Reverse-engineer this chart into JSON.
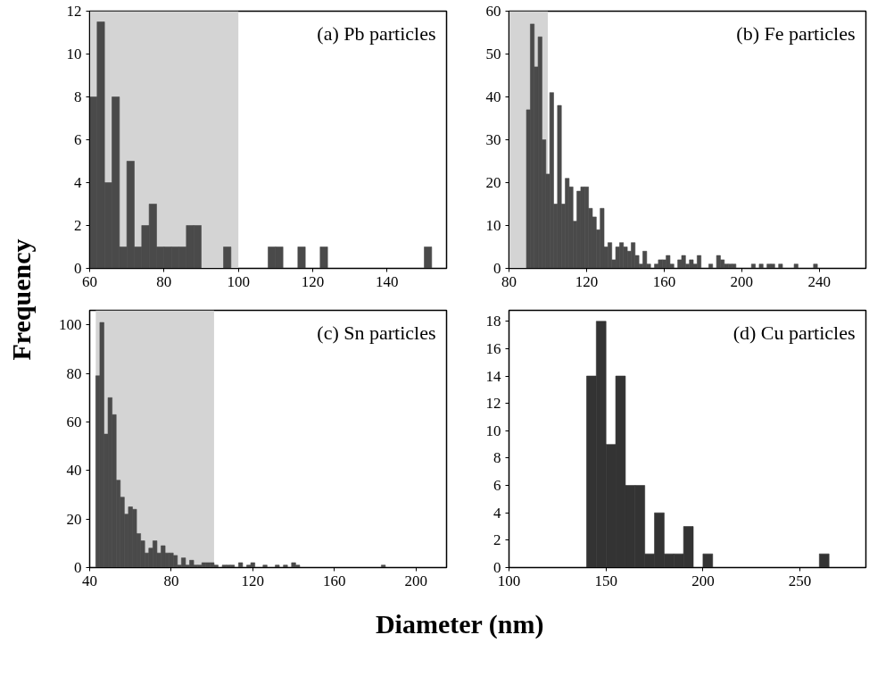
{
  "chart_data": [
    {
      "type": "histogram",
      "ylabel": "Frequency",
      "annotations": [
        "(a) Pb particles"
      ],
      "color": "#4a4a4a",
      "bins": [
        60,
        62,
        64,
        66,
        68,
        70,
        72,
        74,
        76,
        78,
        80,
        82,
        84,
        86,
        88,
        90,
        92,
        94,
        96,
        98,
        100,
        102,
        104,
        106,
        108,
        110,
        112,
        114,
        116,
        118,
        120,
        122,
        124,
        126,
        128,
        130,
        132,
        134,
        136,
        138,
        140,
        142,
        144,
        146,
        148,
        150,
        152
      ],
      "values": [
        8,
        11.5,
        4,
        8,
        1,
        5,
        1,
        2,
        3,
        1,
        1,
        1,
        1,
        2,
        2,
        0,
        0,
        0,
        1,
        0,
        0,
        0,
        0,
        0,
        1,
        1,
        0,
        0,
        1,
        0,
        0,
        1,
        0,
        0,
        0,
        0,
        0,
        0,
        0,
        0,
        0,
        0,
        0,
        0,
        0,
        1
      ],
      "xlim": [
        60,
        156
      ],
      "xticks": [
        60,
        80,
        100,
        120,
        140
      ],
      "ylim": [
        0,
        12
      ],
      "yticks": [
        0,
        2,
        4,
        6,
        8,
        10,
        12
      ],
      "bands": [
        {
          "axis": "x",
          "from": 60,
          "to": 100,
          "color": "#d4d4d4"
        }
      ],
      "grid": false
    },
    {
      "type": "histogram",
      "annotations": [
        "(b) Fe particles"
      ],
      "color": "#4a4a4a",
      "bins": [
        89,
        91,
        93,
        95,
        97,
        99,
        101,
        103,
        105,
        107,
        109,
        111,
        113,
        115,
        117,
        119,
        121,
        123,
        125,
        127,
        129,
        131,
        133,
        135,
        137,
        139,
        141,
        143,
        145,
        147,
        149,
        151,
        153,
        155,
        157,
        159,
        161,
        163,
        165,
        167,
        169,
        171,
        173,
        175,
        177,
        179,
        181,
        183,
        185,
        187,
        189,
        191,
        193,
        195,
        197,
        199,
        201,
        203,
        205,
        207,
        209,
        211,
        213,
        215,
        217,
        219,
        221,
        223,
        225,
        227,
        229,
        231,
        233,
        235,
        237,
        239
      ],
      "values": [
        37,
        57,
        47,
        54,
        30,
        22,
        41,
        15,
        38,
        15,
        21,
        19,
        11,
        18,
        19,
        19,
        14,
        12,
        9,
        14,
        5,
        6,
        2,
        5,
        6,
        5,
        4,
        6,
        3,
        1,
        4,
        1,
        0,
        1,
        2,
        2,
        3,
        1,
        0,
        2,
        3,
        1,
        2,
        1,
        3,
        0,
        0,
        1,
        0,
        3,
        2,
        1,
        1,
        1,
        0,
        0,
        0,
        0,
        1,
        0,
        1,
        0,
        1,
        1,
        0,
        1,
        0,
        0,
        0,
        1,
        0,
        0,
        0,
        0,
        1
      ],
      "xlim": [
        80,
        264
      ],
      "xticks": [
        80,
        120,
        160,
        200,
        240
      ],
      "ylim": [
        0,
        60
      ],
      "yticks": [
        0,
        10,
        20,
        30,
        40,
        50,
        60
      ],
      "bands": [
        {
          "axis": "x",
          "from": 80,
          "to": 100,
          "color": "#d4d4d4"
        }
      ],
      "grid": false
    },
    {
      "type": "histogram",
      "annotations": [
        "(c) Sn particles"
      ],
      "color": "#4a4a4a",
      "bins": [
        43,
        45,
        47,
        49,
        51,
        53,
        55,
        57,
        59,
        61,
        63,
        65,
        67,
        69,
        71,
        73,
        75,
        77,
        79,
        81,
        83,
        85,
        87,
        89,
        91,
        93,
        95,
        97,
        99,
        101,
        103,
        105,
        107,
        109,
        111,
        113,
        115,
        117,
        119,
        121,
        123,
        125,
        127,
        129,
        131,
        133,
        135,
        137,
        139,
        141,
        143,
        145,
        147,
        149,
        151,
        153,
        155,
        157,
        159,
        161,
        163,
        165,
        167,
        169,
        171,
        173,
        175,
        177,
        179,
        181,
        183,
        185
      ],
      "values": [
        79,
        101,
        55,
        70,
        63,
        36,
        29,
        22,
        25,
        24,
        14,
        11,
        6,
        8,
        11,
        6,
        9,
        6,
        6,
        5,
        1,
        4,
        1,
        3,
        1,
        1,
        2,
        2,
        2,
        1,
        0,
        1,
        1,
        1,
        0,
        2,
        0,
        1,
        2,
        0,
        0,
        1,
        0,
        0,
        1,
        0,
        1,
        0,
        2,
        1,
        0,
        0,
        0,
        0,
        0,
        0,
        0,
        0,
        0,
        0,
        0,
        0,
        0,
        0,
        0,
        0,
        0,
        0,
        0,
        0,
        1
      ],
      "xlim": [
        40,
        215
      ],
      "xticks": [
        40,
        80,
        120,
        160,
        200
      ],
      "ylim": [
        0,
        106
      ],
      "yticks": [
        0,
        20,
        40,
        60,
        80,
        100
      ],
      "bands": [
        {
          "axis": "x",
          "from": 43,
          "to": 101,
          "color": "#d4d4d4"
        }
      ],
      "grid": false
    },
    {
      "type": "histogram",
      "xlabel": "Diameter (nm)",
      "annotations": [
        "(d) Cu particles"
      ],
      "color": "#333333",
      "bins": [
        140,
        145,
        150,
        155,
        160,
        165,
        170,
        175,
        180,
        185,
        190,
        195,
        200,
        205,
        210,
        215,
        220,
        225,
        230,
        235,
        240,
        245,
        250,
        255,
        260,
        265
      ],
      "values": [
        14,
        18,
        9,
        14,
        6,
        6,
        1,
        4,
        1,
        1,
        3,
        0,
        1,
        0,
        0,
        0,
        0,
        0,
        0,
        0,
        0,
        0,
        0,
        0,
        1
      ],
      "xlim": [
        100,
        284
      ],
      "xticks": [
        100,
        150,
        200,
        250
      ],
      "ylim": [
        0,
        18.8
      ],
      "yticks": [
        0,
        2,
        4,
        6,
        8,
        10,
        12,
        14,
        16,
        18
      ],
      "grid": false
    }
  ]
}
